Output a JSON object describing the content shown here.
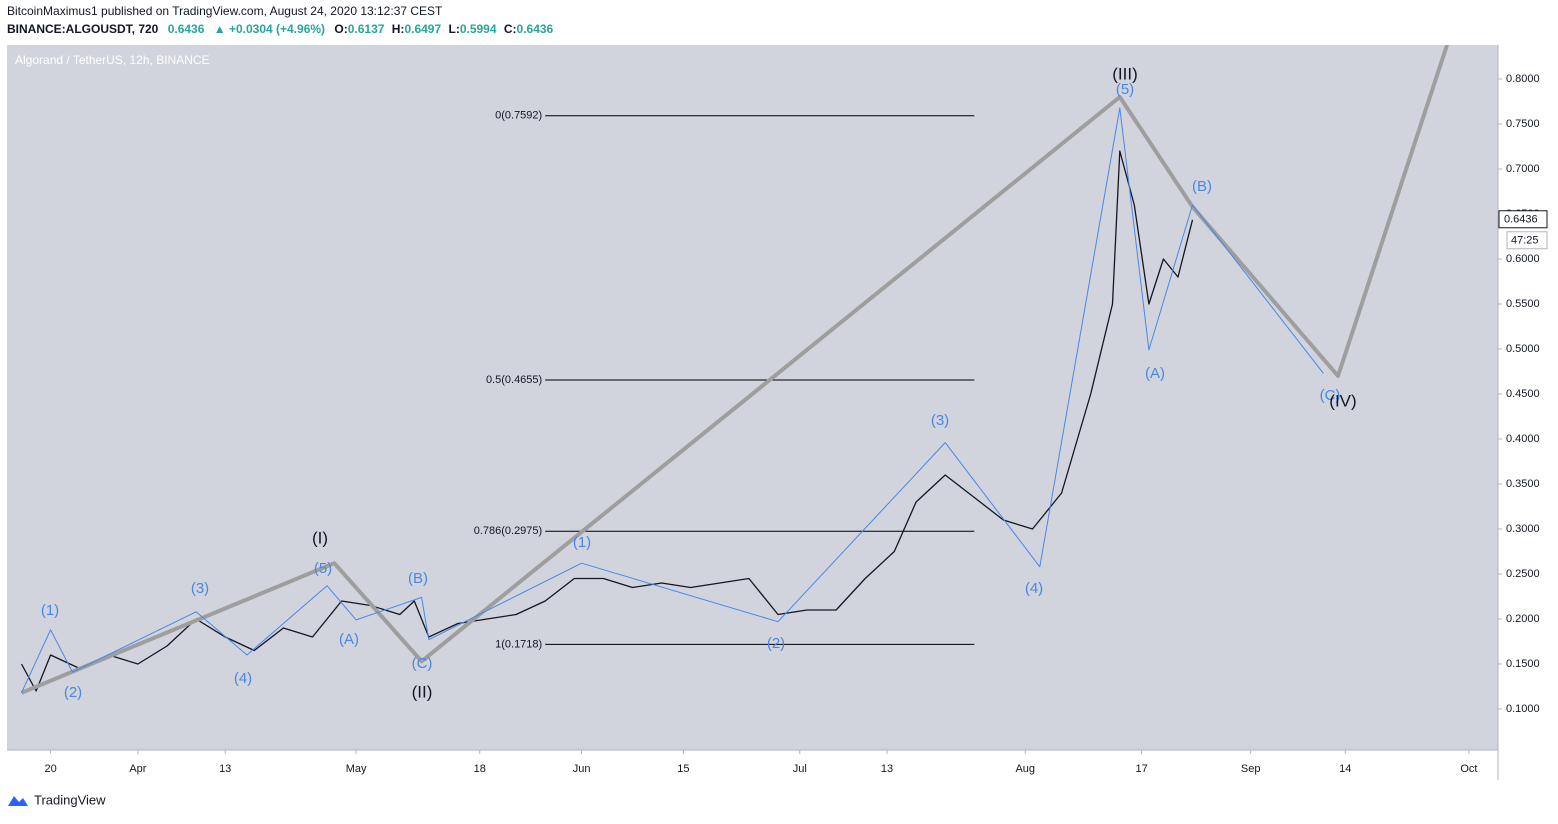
{
  "header": {
    "publisher": "BitcoinMaximus1 published on TradingView.com, August 24, 2020 13:12:37 CEST",
    "symbol": "BINANCE:ALGOUSDT, 720",
    "last": "0.6436",
    "change": "▲ +0.0304 (+4.96%)",
    "o_label": "O:",
    "o": "0.6137",
    "h_label": "H:",
    "h": "0.6497",
    "l_label": "L:",
    "l": "0.5994",
    "c_label": "C:",
    "c": "0.6436"
  },
  "footer": {
    "brand": "TradingView"
  },
  "chart_data": {
    "type": "line",
    "title": "Algorand / TetherUS, 12h, BINANCE",
    "xlim": [
      "03-14",
      "10-05"
    ],
    "ylim": [
      0.0544,
      0.8378
    ],
    "xticks": [
      {
        "value": "03-20",
        "label": "20"
      },
      {
        "value": "04-01",
        "label": "Apr"
      },
      {
        "value": "04-13",
        "label": "13"
      },
      {
        "value": "05-01",
        "label": "May"
      },
      {
        "value": "05-18",
        "label": "18"
      },
      {
        "value": "06-01",
        "label": "Jun"
      },
      {
        "value": "06-15",
        "label": "15"
      },
      {
        "value": "07-01",
        "label": "Jul"
      },
      {
        "value": "07-13",
        "label": "13"
      },
      {
        "value": "08-01",
        "label": "Aug"
      },
      {
        "value": "08-17",
        "label": "17"
      },
      {
        "value": "09-01",
        "label": "Sep"
      },
      {
        "value": "09-14",
        "label": "14"
      },
      {
        "value": "10-01",
        "label": "Oct"
      }
    ],
    "yticks": [
      {
        "value": 0.1,
        "label": "0.1000"
      },
      {
        "value": 0.15,
        "label": "0.1500"
      },
      {
        "value": 0.2,
        "label": "0.2000"
      },
      {
        "value": 0.25,
        "label": "0.2500"
      },
      {
        "value": 0.3,
        "label": "0.3000"
      },
      {
        "value": 0.35,
        "label": "0.3500"
      },
      {
        "value": 0.4,
        "label": "0.4000"
      },
      {
        "value": 0.45,
        "label": "0.4500"
      },
      {
        "value": 0.5,
        "label": "0.5000"
      },
      {
        "value": 0.55,
        "label": "0.5500"
      },
      {
        "value": 0.6,
        "label": "0.6000"
      },
      {
        "value": 0.65,
        "label": "0.6500"
      },
      {
        "value": 0.7,
        "label": "0.7000"
      },
      {
        "value": 0.75,
        "label": "0.7500"
      },
      {
        "value": 0.8,
        "label": "0.8000"
      }
    ],
    "current_price": {
      "value": 0.6436,
      "label": "0.6436",
      "countdown": "47:25"
    },
    "series": [
      {
        "name": "ALGOUSDT",
        "color": "#131722",
        "width": 1.3,
        "x": [
          "03-16",
          "03-18",
          "03-20",
          "03-24",
          "03-28",
          "04-01",
          "04-05",
          "04-09",
          "04-13",
          "04-17",
          "04-21",
          "04-25",
          "04-29",
          "05-03",
          "05-07",
          "05-09",
          "05-11",
          "05-15",
          "05-19",
          "05-23",
          "05-27",
          "05-31",
          "06-04",
          "06-08",
          "06-12",
          "06-16",
          "06-20",
          "06-24",
          "06-28",
          "07-02",
          "07-06",
          "07-10",
          "07-14",
          "07-17",
          "07-21",
          "07-25",
          "07-29",
          "08-02",
          "08-06",
          "08-10",
          "08-13",
          "08-14",
          "08-16",
          "08-18",
          "08-20",
          "08-22",
          "08-24"
        ],
        "values": [
          0.15,
          0.12,
          0.16,
          0.145,
          0.16,
          0.15,
          0.17,
          0.2,
          0.18,
          0.165,
          0.19,
          0.18,
          0.22,
          0.215,
          0.205,
          0.22,
          0.18,
          0.195,
          0.2,
          0.205,
          0.22,
          0.245,
          0.245,
          0.235,
          0.24,
          0.235,
          0.24,
          0.245,
          0.205,
          0.21,
          0.21,
          0.245,
          0.275,
          0.33,
          0.36,
          0.335,
          0.31,
          0.3,
          0.34,
          0.45,
          0.55,
          0.72,
          0.66,
          0.55,
          0.6,
          0.58,
          0.6436
        ]
      },
      {
        "name": "Primary wave",
        "color": "#9e9e9e",
        "width": 4,
        "x": [
          "03-16",
          "04-28",
          "05-10",
          "08-14",
          "08-24",
          "09-13",
          "09-28"
        ],
        "values": [
          0.118,
          0.262,
          0.153,
          0.78,
          0.658,
          0.47,
          0.838
        ]
      },
      {
        "name": "Minor wave",
        "color": "#4a86e8",
        "width": 1,
        "x": [
          "03-16",
          "03-20",
          "03-23",
          "04-09",
          "04-16",
          "04-27",
          "05-01",
          "05-10",
          "05-11",
          "06-01",
          "06-28",
          "07-21",
          "08-03",
          "08-14",
          "08-18",
          "08-24",
          "09-11"
        ],
        "values": [
          0.118,
          0.188,
          0.141,
          0.208,
          0.16,
          0.237,
          0.199,
          0.224,
          0.177,
          0.262,
          0.197,
          0.396,
          0.258,
          0.768,
          0.499,
          0.66,
          0.473
        ]
      }
    ],
    "fib": {
      "x": [
        "05-27",
        "07-25"
      ],
      "levels": [
        {
          "value": 0.7592,
          "label": "0(0.7592)"
        },
        {
          "value": 0.4655,
          "label": "0.5(0.4655)"
        },
        {
          "value": 0.2975,
          "label": "0.786(0.2975)"
        },
        {
          "value": 0.1718,
          "label": "1(0.1718)"
        }
      ]
    },
    "annotations": [
      {
        "text": "(1)",
        "color": "#4a86e8"
      },
      {
        "text": "(2)",
        "color": "#4a86e8"
      },
      {
        "text": "(3)",
        "color": "#4a86e8"
      },
      {
        "text": "(4)",
        "color": "#4a86e8"
      },
      {
        "text": "(5)",
        "color": "#4a86e8"
      },
      {
        "text": "(A)",
        "color": "#4a86e8"
      },
      {
        "text": "(B)",
        "color": "#4a86e8"
      },
      {
        "text": "(C)",
        "color": "#4a86e8"
      },
      {
        "text": "(1)",
        "color": "#4a86e8"
      },
      {
        "text": "(2)",
        "color": "#4a86e8"
      },
      {
        "text": "(3)",
        "color": "#4a86e8"
      },
      {
        "text": "(4)",
        "color": "#4a86e8"
      },
      {
        "text": "(5)",
        "color": "#4a86e8"
      },
      {
        "text": "(A)",
        "color": "#4a86e8"
      },
      {
        "text": "(B)",
        "color": "#4a86e8"
      },
      {
        "text": "(C)",
        "color": "#4a86e8"
      },
      {
        "text": "(I)",
        "color": "#131722"
      },
      {
        "text": "(II)",
        "color": "#131722"
      },
      {
        "text": "(III)",
        "color": "#131722"
      },
      {
        "text": "(IV)",
        "color": "#131722"
      }
    ]
  }
}
